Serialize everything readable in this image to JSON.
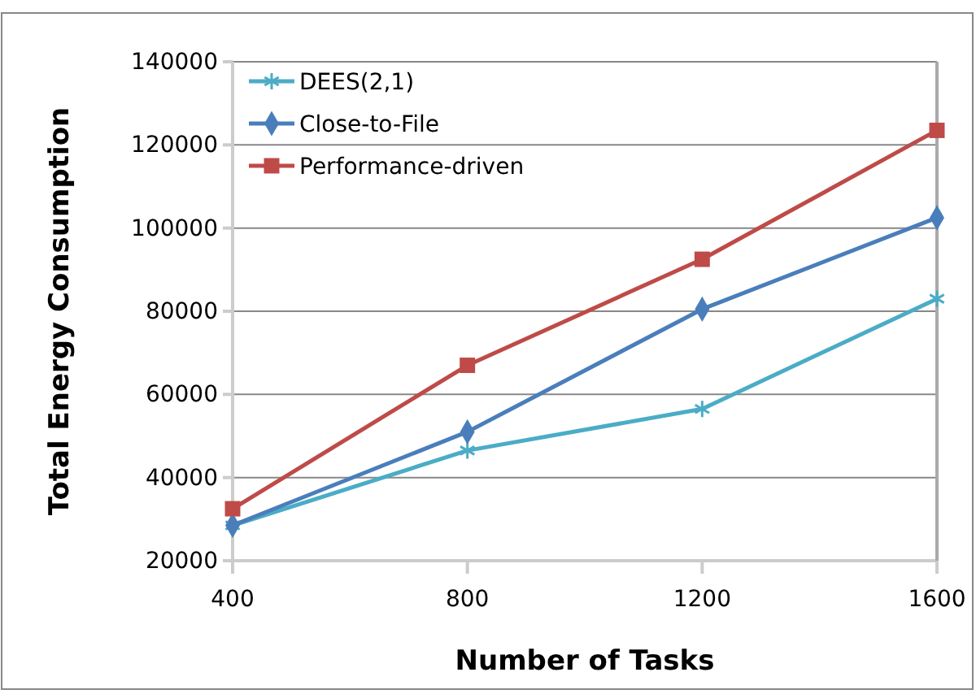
{
  "chart_data": {
    "type": "line",
    "xlabel": "Number of Tasks",
    "ylabel": "Total Energy Consumption",
    "x": [
      400,
      800,
      1200,
      1600
    ],
    "xlim": [
      400,
      1600
    ],
    "xticks": [
      400,
      800,
      1200,
      1600
    ],
    "ylim": [
      20000,
      140000
    ],
    "yticks": [
      20000,
      40000,
      60000,
      80000,
      100000,
      120000,
      140000
    ],
    "grid": "y",
    "legend": "top left",
    "series": [
      {
        "name": "DEES(2,1)",
        "color": "#4bacc6",
        "marker": "cross",
        "values": [
          28500,
          46500,
          56500,
          83000
        ]
      },
      {
        "name": "Close-to-File",
        "color": "#4a7ebb",
        "marker": "diamond",
        "values": [
          28500,
          51000,
          80500,
          102500
        ]
      },
      {
        "name": "Performance-driven",
        "color": "#be4b48",
        "marker": "square",
        "values": [
          32500,
          67000,
          92500,
          123500
        ]
      }
    ]
  }
}
